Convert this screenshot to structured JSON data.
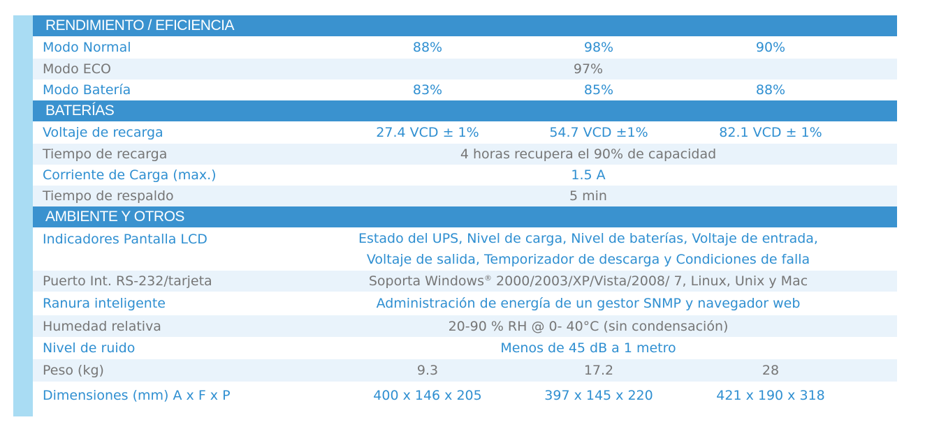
{
  "sections": [
    {
      "title": "RENDIMIENTO / EFICIENCIA",
      "rows": [
        {
          "label": "Modo Normal",
          "values": [
            "88%",
            "98%",
            "90%"
          ]
        },
        {
          "label": "Modo ECO",
          "span": "97%"
        },
        {
          "label": "Modo Batería",
          "values": [
            "83%",
            "85%",
            "88%"
          ]
        }
      ]
    },
    {
      "title": "BATERÍAS",
      "rows": [
        {
          "label": "Voltaje de recarga",
          "values": [
            "27.4 VCD ± 1%",
            "54.7 VCD ±1%",
            "82.1 VCD ± 1%"
          ]
        },
        {
          "label": "Tiempo de recarga",
          "span": "4 horas recupera el 90% de capacidad"
        },
        {
          "label": "Corriente de Carga (max.)",
          "span": "1.5 A"
        },
        {
          "label": "Tiempo de respaldo",
          "span": "5 min"
        }
      ]
    },
    {
      "title": "AMBIENTE Y OTROS",
      "rows": [
        {
          "label": "Indicadores Pantalla LCD",
          "span_lines": [
            "Estado del UPS, Nivel de carga, Nivel de baterías, Voltaje de entrada,",
            "Voltaje de salida, Temporizador de descarga y Condiciones de falla"
          ]
        },
        {
          "label": "Puerto Int. RS-232/tarjeta",
          "span_pre": "Soporta Windows",
          "span_sup": "®",
          "span_post": " 2000/2003/XP/Vista/2008/ 7, Linux, Unix y Mac"
        },
        {
          "label": "Ranura inteligente",
          "span": "Administración de energía de un gestor SNMP y navegador web"
        },
        {
          "label": "Humedad relativa",
          "span": "20-90 % RH @ 0- 40°C (sin condensación)"
        },
        {
          "label": "Nivel de ruido",
          "span": "Menos de 45 dB a 1 metro"
        },
        {
          "label": "Peso (kg)",
          "values": [
            "9.3",
            "17.2",
            "28"
          ]
        },
        {
          "label": "Dimensiones (mm) A x F x P",
          "values": [
            "400 x 146 x 205",
            "397 x 145 x 220",
            "421 x 190 x 318"
          ]
        }
      ]
    }
  ],
  "colors": {
    "header_bg": "#3a92cf",
    "sidebar": "#a9dcf3",
    "blue_text": "#2f8fd1",
    "gray_text": "#767676",
    "stripe_bg": "#e9f3fb"
  }
}
